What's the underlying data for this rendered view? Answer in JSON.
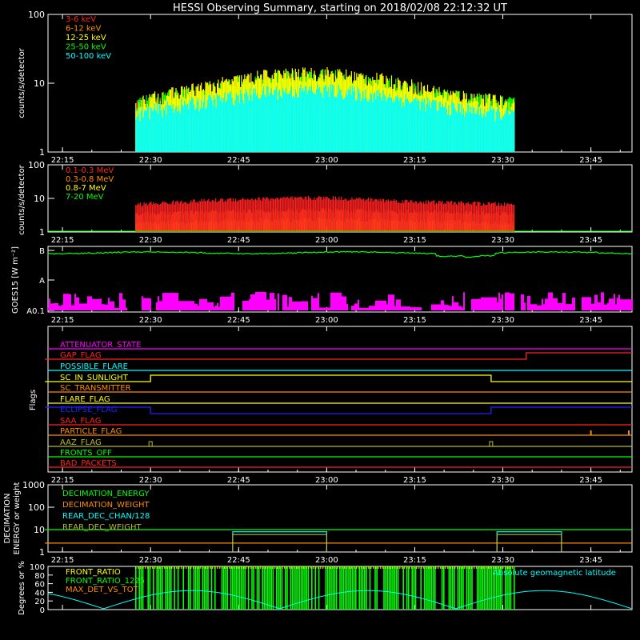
{
  "title": "HESSI Observing Summary, starting on 2018/02/08 22:12:32 UT",
  "time_ticks": [
    "22:15",
    "22:30",
    "22:45",
    "23:00",
    "23:15",
    "23:30",
    "23:45"
  ],
  "colors": {
    "red": "#ff2020",
    "orange": "#ff8c00",
    "yellow": "#ffff00",
    "green": "#00ff00",
    "cyan": "#00ffff",
    "magenta": "#ff00ff",
    "blue": "#2020ff",
    "white": "#ffffff",
    "olive": "#b8b82a"
  },
  "chart_data": [
    {
      "id": "lo-energy",
      "type": "line",
      "title": "",
      "ylabel": "counts/s/detector",
      "yscale": "log",
      "ylim": [
        1,
        100
      ],
      "y_ticks": [
        "1",
        "10",
        "100"
      ],
      "x_range": [
        "22:12:32",
        "23:52:00"
      ],
      "series": [
        {
          "name": "3-6 keV",
          "color": "#ff2020",
          "x": [
            "22:27",
            "22:40",
            "22:50",
            "23:00",
            "23:10",
            "23:20",
            "23:32"
          ],
          "values": [
            4.5,
            5.5,
            7.5,
            8.5,
            7.0,
            5.0,
            4.5
          ]
        },
        {
          "name": "6-12 keV",
          "color": "#ff8c00",
          "x": [
            "22:27",
            "22:40",
            "22:50",
            "23:00",
            "23:10",
            "23:20",
            "23:32"
          ],
          "values": [
            2.5,
            3.5,
            4.0,
            4.5,
            3.5,
            2.5,
            2.0
          ]
        },
        {
          "name": "12-25 keV",
          "color": "#ffff00",
          "x": [
            "22:27",
            "22:40",
            "22:50",
            "23:00",
            "23:10",
            "23:20",
            "23:32"
          ],
          "values": [
            5.0,
            9.0,
            13.0,
            14.0,
            11.0,
            7.0,
            5.0
          ]
        },
        {
          "name": "25-50 keV",
          "color": "#00ff00",
          "x": [
            "22:27",
            "22:40",
            "22:50",
            "23:00",
            "23:10",
            "23:20",
            "23:32"
          ],
          "values": [
            5.0,
            8.0,
            12.0,
            13.0,
            10.0,
            6.5,
            5.0
          ]
        },
        {
          "name": "50-100 keV",
          "color": "#00ffff",
          "x": [
            "22:27",
            "22:40",
            "22:50",
            "23:00",
            "23:10",
            "23:20",
            "23:32"
          ],
          "values": [
            3.5,
            5.5,
            7.5,
            8.0,
            6.5,
            4.5,
            3.5
          ]
        }
      ]
    },
    {
      "id": "hi-energy",
      "type": "line",
      "title": "",
      "ylabel": "counts/s/detector",
      "yscale": "log",
      "ylim": [
        1,
        100
      ],
      "y_ticks": [
        "1",
        "10",
        "100"
      ],
      "x_range": [
        "22:12:32",
        "23:52:00"
      ],
      "series": [
        {
          "name": "0.1-0.3 MeV",
          "color": "#ff2020",
          "x": [
            "22:27",
            "22:45",
            "23:00",
            "23:15",
            "23:32"
          ],
          "values": [
            6.5,
            9.5,
            10.5,
            8.0,
            6.5
          ]
        },
        {
          "name": "0.3-0.8 MeV",
          "color": "#ff8c00",
          "x": [
            "22:27",
            "22:45",
            "23:00",
            "23:15",
            "23:32"
          ],
          "values": [
            3.5,
            4.2,
            4.5,
            4.0,
            3.5
          ]
        },
        {
          "name": "0.8-7 MeV",
          "color": "#ffff00",
          "x": [
            "22:27",
            "22:45",
            "23:00",
            "23:15",
            "23:32"
          ],
          "values": [
            1.8,
            2.2,
            2.4,
            2.2,
            1.8
          ]
        },
        {
          "name": "7-20 MeV",
          "color": "#00ff00",
          "x": [
            "22:12",
            "23:52"
          ],
          "values": [
            1.0,
            1.0
          ]
        }
      ]
    },
    {
      "id": "goes",
      "type": "line",
      "title": "",
      "ylabel": "GOES15 [W m⁻²]",
      "yscale": "log",
      "y_ticks": [
        "A0.1",
        "A",
        "B"
      ],
      "x_range": [
        "22:12:32",
        "23:52:00"
      ],
      "series": [
        {
          "name": "",
          "color": "#00ff00",
          "x": [
            "22:12",
            "22:30",
            "23:00",
            "23:20",
            "23:30",
            "23:52"
          ],
          "values": [
            "B",
            "B",
            "B",
            "B",
            "B",
            "B"
          ]
        },
        {
          "name": "",
          "color": "#ff00ff",
          "x": [
            "22:12",
            "23:52"
          ],
          "values": [
            "A0.3",
            "A0.3"
          ]
        }
      ]
    },
    {
      "id": "flags",
      "type": "line",
      "title": "",
      "ylabel": "Flags",
      "x_range": [
        "22:12:32",
        "23:52:00"
      ],
      "series": [
        {
          "name": "ATTENUATOR_STATE",
          "color": "#ff00ff"
        },
        {
          "name": "GAP_FLAG",
          "color": "#ff2020",
          "x": [
            "22:12",
            "23:34",
            "23:34",
            "23:52"
          ],
          "values": [
            0,
            0,
            1,
            1
          ]
        },
        {
          "name": "POSSIBLE_FLARE",
          "color": "#00ffff"
        },
        {
          "name": "SC_IN_SUNLIGHT",
          "color": "#ffff00",
          "x": [
            "22:12",
            "22:30",
            "22:30",
            "23:28",
            "23:28",
            "23:52"
          ],
          "values": [
            0,
            0,
            1,
            1,
            0,
            0
          ]
        },
        {
          "name": "SC_TRANSMITTER",
          "color": "#ff8c00"
        },
        {
          "name": "FLARE_FLAG",
          "color": "#ffff00"
        },
        {
          "name": "ECLIPSE_FLAG",
          "color": "#2020ff",
          "x": [
            "22:12",
            "22:30",
            "22:30",
            "23:28",
            "23:28",
            "23:52"
          ],
          "values": [
            1,
            1,
            0,
            0,
            1,
            1
          ]
        },
        {
          "name": "SAA_FLAG",
          "color": "#ff2020"
        },
        {
          "name": "PARTICLE_FLAG",
          "color": "#ff8c00"
        },
        {
          "name": "AAZ_FLAG",
          "color": "#b8b82a"
        },
        {
          "name": "FRONTS_OFF",
          "color": "#00ff00"
        },
        {
          "name": "BAD_PACKETS",
          "color": "#ff2020"
        }
      ]
    },
    {
      "id": "decimation",
      "type": "line",
      "title": "",
      "ylabel": "DECIMATION ENERGY or weight",
      "yscale": "log",
      "ylim": [
        1,
        1000
      ],
      "y_ticks": [
        "1",
        "10",
        "100",
        "1000"
      ],
      "x_range": [
        "22:12:32",
        "23:52:00"
      ],
      "series": [
        {
          "name": "DECIMATION_ENERGY",
          "color": "#00ff00",
          "x": [
            "22:12",
            "23:52"
          ],
          "values": [
            10,
            10
          ]
        },
        {
          "name": "DECIMATION_WEIGHT",
          "color": "#ff8c00",
          "x": [
            "22:12",
            "23:52"
          ],
          "values": [
            2.5,
            2.5
          ]
        },
        {
          "name": "REAR_DEC_CHAN/128",
          "color": "#00ffff",
          "x": [
            "22:44",
            "22:44",
            "23:00",
            "23:00",
            "23:29",
            "23:29",
            "23:40",
            "23:40"
          ],
          "values": [
            1,
            8,
            8,
            1,
            1,
            8,
            8,
            1
          ]
        },
        {
          "name": "REAR_DEC_WEIGHT",
          "color": "#b8b82a",
          "x": [
            "22:44",
            "22:44",
            "23:00",
            "23:00",
            "23:29",
            "23:29",
            "23:40",
            "23:40"
          ],
          "values": [
            1,
            6,
            6,
            1,
            1,
            6,
            6,
            1
          ]
        }
      ]
    },
    {
      "id": "ratios",
      "type": "line",
      "title": "",
      "ylabel": "Degrees or %",
      "ylim": [
        0,
        100
      ],
      "y_ticks": [
        "0",
        "20",
        "40",
        "60",
        "80",
        "100"
      ],
      "x_range": [
        "22:12:32",
        "23:52:00"
      ],
      "annotation": "Absolute geomagnetic latitude",
      "series": [
        {
          "name": "FRONT_RATIO",
          "color": "#ffff00"
        },
        {
          "name": "FRONT_RATIO_1225",
          "color": "#00ff00"
        },
        {
          "name": "MAX_DET_VS_TOT",
          "color": "#ff8c00"
        },
        {
          "name": "Absolute geomagnetic latitude",
          "color": "#00ffff",
          "x": [
            "22:12",
            "22:22",
            "22:52",
            "23:22",
            "23:52"
          ],
          "values": [
            25,
            5,
            40,
            2,
            30
          ]
        }
      ]
    }
  ]
}
